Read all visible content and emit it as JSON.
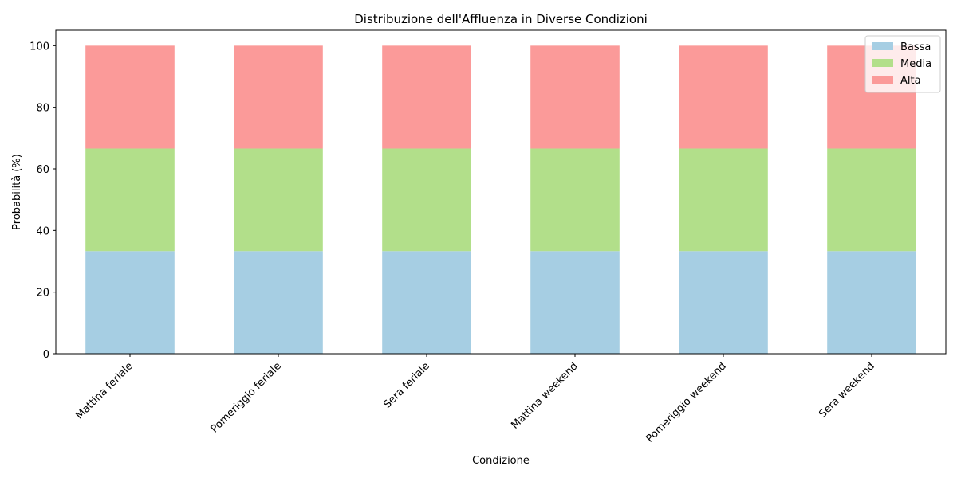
{
  "chart_data": {
    "type": "bar",
    "stacked": true,
    "title": "Distribuzione dell'Affluenza in Diverse Condizioni",
    "xlabel": "Condizione",
    "ylabel": "Probabilità (%)",
    "ylim": [
      0,
      105
    ],
    "yticks": [
      0,
      20,
      40,
      60,
      80,
      100
    ],
    "categories": [
      "Mattina feriale",
      "Pomeriggio feriale",
      "Sera feriale",
      "Mattina weekend",
      "Pomeriggio weekend",
      "Sera weekend"
    ],
    "series": [
      {
        "name": "Bassa",
        "color": "#a6cee3",
        "values": [
          33.3,
          33.3,
          33.3,
          33.3,
          33.3,
          33.3
        ]
      },
      {
        "name": "Media",
        "color": "#b2df8a",
        "values": [
          33.3,
          33.3,
          33.3,
          33.3,
          33.3,
          33.3
        ]
      },
      {
        "name": "Alta",
        "color": "#fb9a99",
        "values": [
          33.4,
          33.4,
          33.4,
          33.4,
          33.4,
          33.4
        ]
      }
    ],
    "grid": false,
    "legend_position": "top-right"
  }
}
